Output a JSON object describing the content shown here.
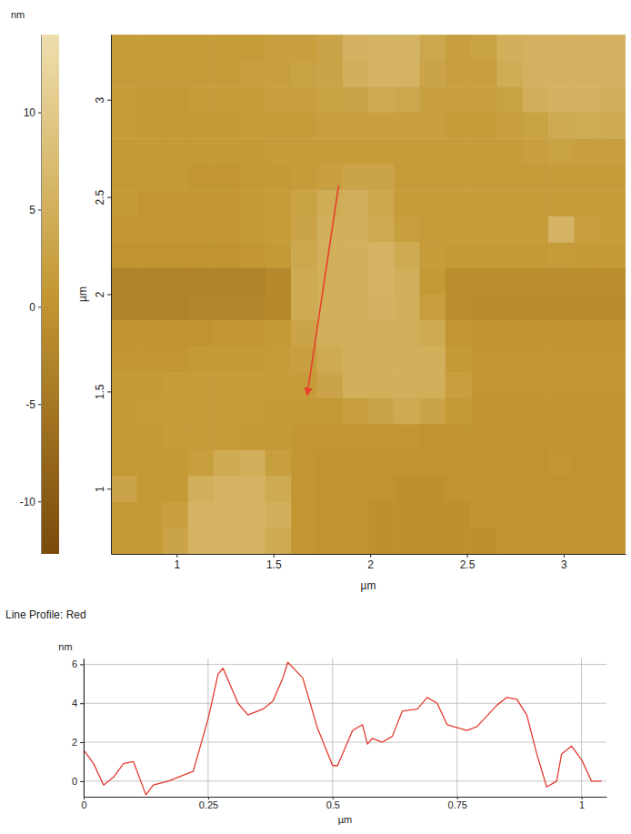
{
  "chart_data": [
    {
      "type": "heatmap",
      "x_label": "µm",
      "y_label": "µm",
      "xlim": [
        0.66,
        3.32
      ],
      "xticks": [
        1,
        1.5,
        2,
        2.5,
        3
      ],
      "ylim": [
        0.665,
        3.335
      ],
      "yticks": [
        1,
        1.5,
        2,
        2.5,
        3
      ],
      "x": [
        0.7265,
        0.8595,
        0.9925,
        1.1255,
        1.2585,
        1.3915,
        1.5245,
        1.6575,
        1.7905,
        1.9235,
        2.0565,
        2.1895,
        2.3225,
        2.4555,
        2.5885,
        2.7215,
        2.8545,
        2.9875,
        3.1205,
        3.2535
      ],
      "y": [
        3.268,
        3.135,
        3.001,
        2.868,
        2.734,
        2.601,
        2.467,
        2.334,
        2.2,
        2.067,
        1.933,
        1.8,
        1.666,
        1.533,
        1.399,
        1.266,
        1.132,
        0.999,
        0.865,
        0.732
      ],
      "z": [
        [
          1.5,
          1.5,
          1.5,
          1.5,
          1.5,
          1.5,
          2,
          2,
          3,
          5.5,
          6,
          6,
          3.5,
          2,
          2.5,
          5,
          5.5,
          5.5,
          5.5,
          5.5
        ],
        [
          1.5,
          1.5,
          1.5,
          1.5,
          1.5,
          2,
          2,
          2.5,
          3,
          5,
          6,
          6,
          3,
          2,
          2,
          4.5,
          5.5,
          5.5,
          5.5,
          5.5
        ],
        [
          1.5,
          1,
          1,
          1.5,
          1.5,
          1.5,
          2,
          2,
          2.5,
          3,
          4,
          3.5,
          2,
          2,
          2,
          2.5,
          5,
          5.5,
          5.5,
          5
        ],
        [
          1.5,
          1,
          1,
          1,
          1,
          1.5,
          1.5,
          1.5,
          2,
          2,
          2,
          2,
          2,
          1.5,
          1.5,
          2,
          2.5,
          4,
          4.5,
          4
        ],
        [
          1,
          1,
          1,
          1,
          1,
          1,
          1.5,
          1.5,
          1.5,
          1.5,
          1.5,
          1.5,
          1.5,
          1.5,
          1.5,
          1.5,
          2,
          2.5,
          2,
          2
        ],
        [
          1,
          1,
          1,
          0.5,
          0.5,
          1,
          1,
          1.5,
          2,
          3,
          3,
          1.5,
          1.5,
          1.5,
          1.5,
          1.5,
          1.5,
          1.5,
          1.5,
          1.5
        ],
        [
          1,
          0.5,
          0.5,
          0.5,
          0.5,
          1,
          1.5,
          2.5,
          4.5,
          5,
          3.5,
          1.5,
          1.5,
          1.5,
          1.5,
          1.5,
          1.5,
          1.5,
          1.5,
          1.5
        ],
        [
          0.5,
          0.5,
          0.5,
          0.5,
          0.5,
          1,
          1.5,
          3,
          5,
          5,
          4,
          2,
          1.5,
          1.5,
          1.5,
          1.5,
          1.5,
          6,
          2,
          1.5
        ],
        [
          0,
          0,
          0,
          0,
          0,
          0.5,
          1,
          3.5,
          5,
          5,
          6,
          4,
          1.5,
          1,
          1,
          1,
          1,
          1.5,
          1,
          1
        ],
        [
          -3,
          -3,
          -3,
          -3,
          -3,
          -3,
          -2,
          4,
          5,
          5,
          6,
          5,
          1,
          -1,
          -1,
          -1,
          -1,
          -1,
          -1,
          -1
        ],
        [
          -3,
          -3,
          -3,
          -2.5,
          -2.5,
          -2.5,
          -2,
          4,
          5,
          5,
          5.5,
          5,
          2,
          -1,
          -1.5,
          -1.5,
          -1.5,
          -1.5,
          -1.5,
          -1.5
        ],
        [
          0,
          0,
          0,
          0,
          0.5,
          0.5,
          1,
          3,
          5,
          5,
          5,
          5,
          4,
          0.5,
          0,
          0,
          0,
          0,
          0,
          0
        ],
        [
          0.5,
          0.5,
          0.5,
          1,
          1,
          1,
          1.5,
          2,
          4,
          5,
          5,
          5,
          5,
          1,
          0.5,
          0.5,
          0.5,
          0.5,
          0.5,
          0.5
        ],
        [
          1,
          1,
          1.5,
          1.5,
          1.5,
          1.5,
          1.5,
          1.5,
          3,
          5,
          5,
          5,
          5,
          2,
          0.5,
          0.5,
          0.5,
          0.5,
          0.5,
          0.5
        ],
        [
          1,
          1.5,
          1.5,
          1.5,
          1.5,
          1.5,
          1,
          1,
          1,
          2,
          3,
          4,
          3,
          1,
          0,
          0,
          0,
          0,
          0,
          0
        ],
        [
          1,
          1,
          1.5,
          1.5,
          1.5,
          1,
          1,
          0.5,
          0.5,
          0.5,
          0.5,
          0.5,
          0,
          0,
          0,
          0,
          0,
          0,
          0,
          0
        ],
        [
          1,
          1,
          1,
          2,
          4,
          5,
          2,
          0.5,
          0,
          0,
          0,
          0,
          0,
          0,
          0,
          0,
          0,
          0.5,
          0,
          0
        ],
        [
          3,
          1,
          1,
          5,
          6,
          6,
          4,
          0.5,
          0,
          0,
          0,
          -0.5,
          -0.5,
          0,
          0,
          0,
          0,
          0,
          0,
          0
        ],
        [
          1,
          1,
          2,
          6,
          6,
          6,
          5,
          0.5,
          0,
          0,
          -0.5,
          -0.5,
          -0.5,
          -0.5,
          0,
          0,
          0,
          0,
          0,
          0
        ],
        [
          1,
          1,
          3,
          6,
          6,
          6,
          4,
          0.5,
          0,
          0,
          -0.5,
          -0.5,
          -0.5,
          -0.5,
          -0.5,
          0,
          0,
          0,
          0,
          0
        ]
      ],
      "colorbar": {
        "label": "nm",
        "range": [
          -12.7,
          14
        ],
        "ticks": [
          -10,
          -5,
          0,
          5,
          10
        ]
      },
      "profile_line": {
        "color": "#e8402a",
        "x": [
          1.837,
          1.674
        ],
        "y": [
          2.558,
          1.479
        ]
      }
    },
    {
      "type": "line",
      "title": "Line Profile: Red",
      "x_label": "µm",
      "y_label": "nm",
      "color": "#e23b2e",
      "grid": true,
      "xlim": [
        0,
        1.05
      ],
      "xticks": [
        0,
        0.25,
        0.5,
        0.75,
        1
      ],
      "ylim": [
        -0.8,
        6.3
      ],
      "yticks": [
        0,
        2,
        4,
        6
      ],
      "x": [
        0,
        0.02,
        0.04,
        0.06,
        0.08,
        0.1,
        0.125,
        0.14,
        0.17,
        0.2,
        0.22,
        0.25,
        0.27,
        0.28,
        0.31,
        0.33,
        0.36,
        0.38,
        0.4,
        0.41,
        0.44,
        0.47,
        0.5,
        0.51,
        0.54,
        0.56,
        0.57,
        0.58,
        0.6,
        0.62,
        0.64,
        0.67,
        0.69,
        0.71,
        0.73,
        0.77,
        0.79,
        0.83,
        0.85,
        0.87,
        0.89,
        0.91,
        0.93,
        0.95,
        0.96,
        0.98,
        1.0,
        1.02,
        1.04
      ],
      "values": [
        1.6,
        0.9,
        -0.2,
        0.2,
        0.9,
        1.0,
        -0.7,
        -0.2,
        0,
        0.3,
        0.5,
        3.2,
        5.5,
        5.8,
        4.0,
        3.4,
        3.7,
        4.1,
        5.3,
        6.1,
        5.3,
        2.7,
        0.8,
        0.8,
        2.6,
        2.9,
        1.9,
        2.2,
        2.0,
        2.3,
        3.6,
        3.7,
        4.3,
        4.0,
        2.9,
        2.6,
        2.8,
        3.9,
        4.3,
        4.2,
        3.4,
        1.4,
        -0.3,
        0,
        1.4,
        1.8,
        1.1,
        0,
        0
      ]
    }
  ]
}
